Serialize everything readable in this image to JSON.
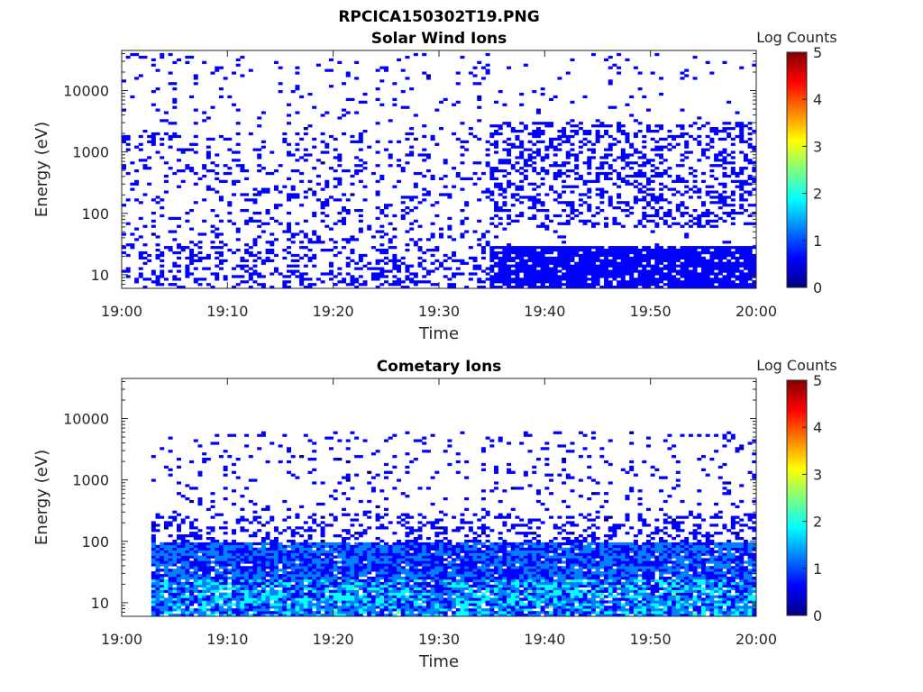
{
  "figure": {
    "title": "RPCICA150302T19.PNG"
  },
  "colors": {
    "colormap": [
      "#00007f",
      "#0000ff",
      "#007fff",
      "#00ffff",
      "#7fff7f",
      "#ffff00",
      "#ff7f00",
      "#ff0000",
      "#7f0000"
    ],
    "axis": "#262626",
    "background": "#ffffff"
  },
  "chart_data": [
    {
      "type": "heatmap",
      "title": "Solar Wind Ions",
      "xlabel": "Time",
      "ylabel": "Energy (eV)",
      "y_scale": "log",
      "ylim": [
        6,
        45000
      ],
      "xlim": [
        "19:00",
        "20:00"
      ],
      "x_ticks": [
        "19:00",
        "19:10",
        "19:20",
        "19:30",
        "19:40",
        "19:50",
        "20:00"
      ],
      "y_ticks": [
        10,
        100,
        1000,
        10000
      ],
      "y_tick_labels": [
        "10",
        "100",
        "1000",
        "10000"
      ],
      "colorbar": {
        "label": "Log Counts",
        "range": [
          0,
          5
        ],
        "ticks": [
          "0",
          "1",
          "2",
          "3",
          "4",
          "5"
        ]
      },
      "summary": {
        "low_energy_band_eV": [
          6,
          30
        ],
        "low_energy_band_level": 0.5,
        "sparse_high_energy_range_eV": [
          30,
          40000
        ],
        "quasi_periodic_burst_minutes": [
          3.7,
          7.4,
          9.2,
          11.2,
          13.8,
          16.6,
          19.1,
          22.4,
          24.8,
          27.1,
          30.2,
          32.8
        ],
        "dense_segment_start": "19:35"
      }
    },
    {
      "type": "heatmap",
      "title": "Cometary Ions",
      "xlabel": "Time",
      "ylabel": "Energy (eV)",
      "y_scale": "log",
      "ylim": [
        6,
        45000
      ],
      "xlim": [
        "19:00",
        "20:00"
      ],
      "x_ticks": [
        "19:00",
        "19:10",
        "19:20",
        "19:30",
        "19:40",
        "19:50",
        "20:00"
      ],
      "y_ticks": [
        10,
        100,
        1000,
        10000
      ],
      "y_tick_labels": [
        "10",
        "100",
        "1000",
        "10000"
      ],
      "colorbar": {
        "label": "Log Counts",
        "range": [
          0,
          5
        ],
        "ticks": [
          "0",
          "1",
          "2",
          "3",
          "4",
          "5"
        ]
      },
      "summary": {
        "main_band_eV": [
          6,
          100
        ],
        "main_band_level": 1.2,
        "peak_level": 2.2,
        "sparse_high_energy_range_eV": [
          100,
          6000
        ],
        "data_start": "19:03"
      }
    }
  ]
}
